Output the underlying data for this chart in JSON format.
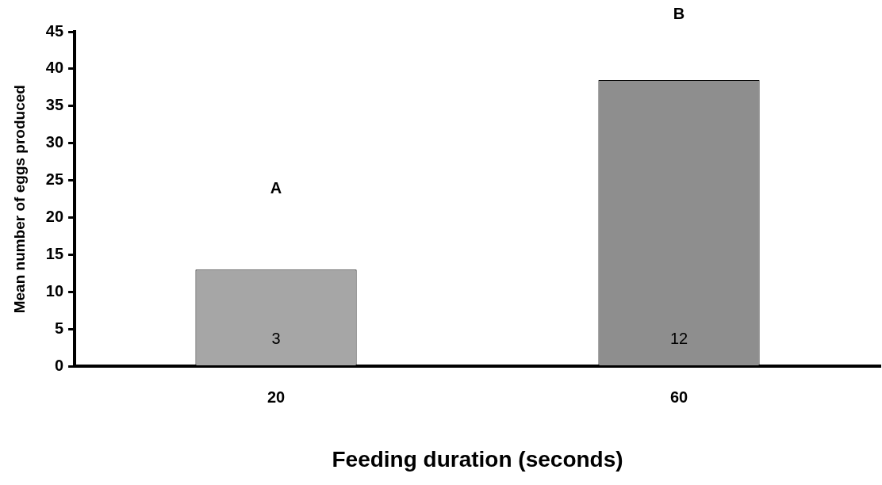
{
  "chart_data": {
    "type": "bar",
    "xlabel": "Feeding duration (seconds)",
    "ylabel": "Mean number of eggs produced",
    "categories": [
      "20",
      "60"
    ],
    "values": [
      13,
      38.5
    ],
    "colors": [
      "#a6a6a6",
      "#8e8e8e"
    ],
    "ylim": [
      0,
      45
    ],
    "yticks": [
      0,
      5,
      10,
      15,
      20,
      25,
      30,
      35,
      40,
      45
    ],
    "grid": false,
    "legend": false,
    "annotations": [
      "A",
      "B",
      "3",
      "12"
    ]
  }
}
